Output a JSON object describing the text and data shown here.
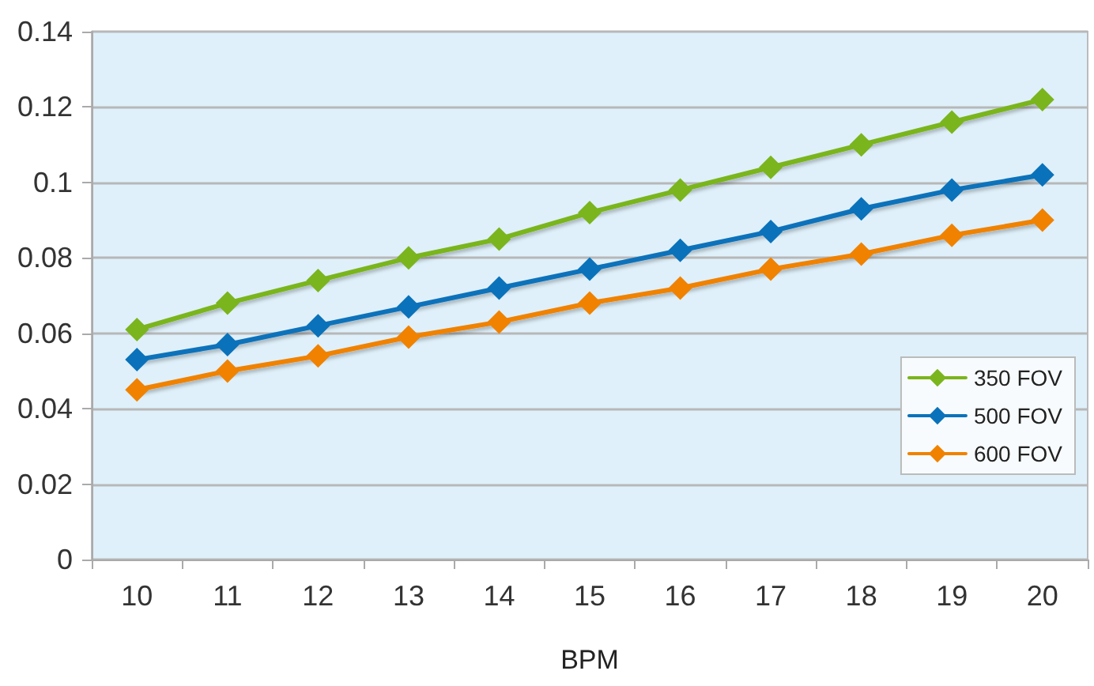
{
  "chart_data": {
    "type": "line",
    "xlabel": "BPM",
    "categories": [
      "10",
      "11",
      "12",
      "13",
      "14",
      "15",
      "16",
      "17",
      "18",
      "19",
      "20"
    ],
    "series": [
      {
        "name": "350 FOV",
        "color": "#7ab51d",
        "values": [
          0.061,
          0.068,
          0.074,
          0.08,
          0.085,
          0.092,
          0.098,
          0.104,
          0.11,
          0.116,
          0.122
        ]
      },
      {
        "name": "500 FOV",
        "color": "#0a72ba",
        "values": [
          0.053,
          0.057,
          0.062,
          0.067,
          0.072,
          0.077,
          0.082,
          0.087,
          0.093,
          0.098,
          0.102
        ]
      },
      {
        "name": "600 FOV",
        "color": "#f08200",
        "values": [
          0.045,
          0.05,
          0.054,
          0.059,
          0.063,
          0.068,
          0.072,
          0.077,
          0.081,
          0.086,
          0.09
        ]
      }
    ],
    "ylim": [
      0,
      0.14
    ],
    "yticks": [
      0,
      0.02,
      0.04,
      0.06,
      0.08,
      0.1,
      0.12,
      0.14
    ],
    "grid": "y",
    "legend": "right",
    "marker": "diamond",
    "line_style": "solid"
  }
}
